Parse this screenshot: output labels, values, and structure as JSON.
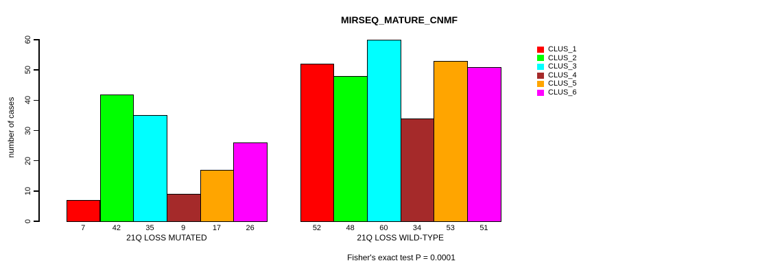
{
  "figure": {
    "title": "MIRSEQ_MATURE_CNMF",
    "annotation": "Fisher's exact test P = 0.0001"
  },
  "chart_data": {
    "type": "bar",
    "title": "MIRSEQ_MATURE_CNMF",
    "ylabel": "number of cases",
    "xlabel": "",
    "ylim": [
      0,
      60
    ],
    "yticks": [
      0,
      10,
      20,
      30,
      40,
      50,
      60
    ],
    "grid": false,
    "legend_position": "right",
    "value_labels_shown": true,
    "categories": [
      "21Q LOSS MUTATED",
      "21Q LOSS WILD-TYPE"
    ],
    "series": [
      {
        "name": "CLUS_1",
        "color": "#FF0000",
        "values": [
          7,
          52
        ]
      },
      {
        "name": "CLUS_2",
        "color": "#00FF00",
        "values": [
          42,
          48
        ]
      },
      {
        "name": "CLUS_3",
        "color": "#00FFFF",
        "values": [
          35,
          60
        ]
      },
      {
        "name": "CLUS_4",
        "color": "#A52A2A",
        "values": [
          9,
          34
        ]
      },
      {
        "name": "CLUS_5",
        "color": "#FFA500",
        "values": [
          17,
          53
        ]
      },
      {
        "name": "CLUS_6",
        "color": "#FF00FF",
        "values": [
          26,
          51
        ]
      }
    ],
    "annotation": "Fisher's exact test P = 0.0001"
  }
}
